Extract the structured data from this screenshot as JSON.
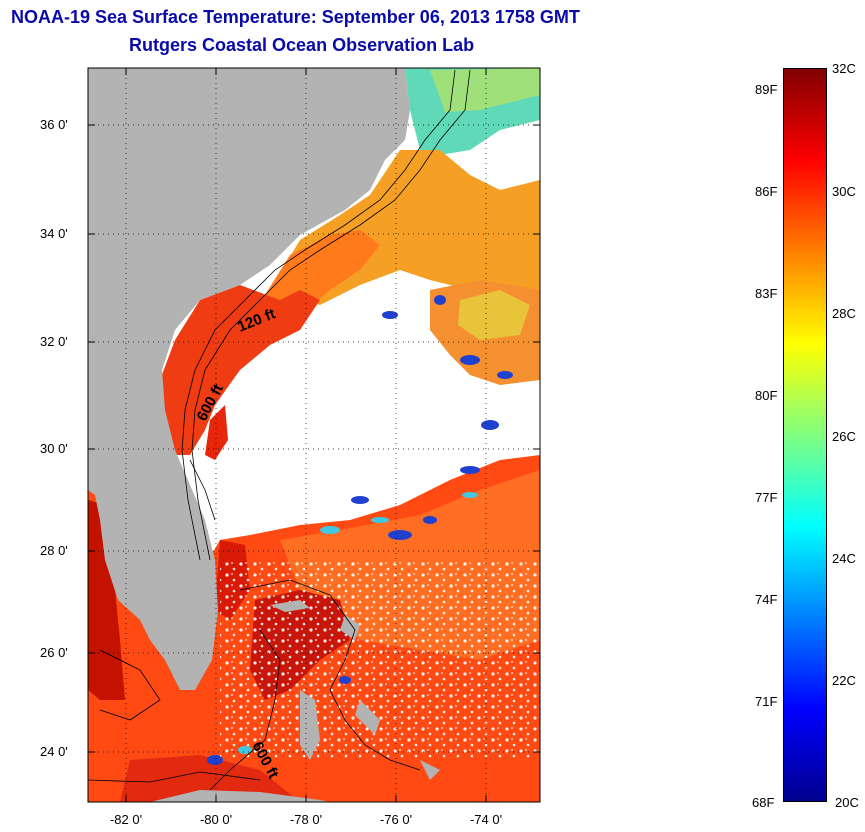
{
  "title": {
    "line1": "NOAA-19 Sea Surface Temperature:  September 06, 2013 1758 GMT",
    "line2": "Rutgers Coastal Ocean Observation Lab"
  },
  "map": {
    "lat_ticks": [
      "36 0'",
      "34 0'",
      "32 0'",
      "30 0'",
      "28 0'",
      "26 0'",
      "24 0'"
    ],
    "lon_ticks": [
      "-82 0'",
      "-80 0'",
      "-78 0'",
      "-76 0'",
      "-74 0'"
    ],
    "lat_range": [
      23,
      37.1
    ],
    "lon_range": [
      -83,
      -73
    ],
    "contour_labels": [
      "120 ft",
      "600 ft",
      "600 ft"
    ],
    "land_color": "#b3b3b3",
    "cloud_color": "#ffffff"
  },
  "colorbar": {
    "celsius_labels": [
      "32C",
      "30C",
      "28C",
      "26C",
      "24C",
      "22C",
      "20C"
    ],
    "fahrenheit_labels": [
      "89F",
      "86F",
      "83F",
      "80F",
      "77F",
      "74F",
      "71F",
      "68F"
    ],
    "range_c": [
      20,
      32
    ],
    "colors": [
      "#00008f",
      "#0000ff",
      "#0080ff",
      "#00ffff",
      "#80ff80",
      "#ffff00",
      "#ff8000",
      "#ff0000",
      "#800000"
    ]
  }
}
